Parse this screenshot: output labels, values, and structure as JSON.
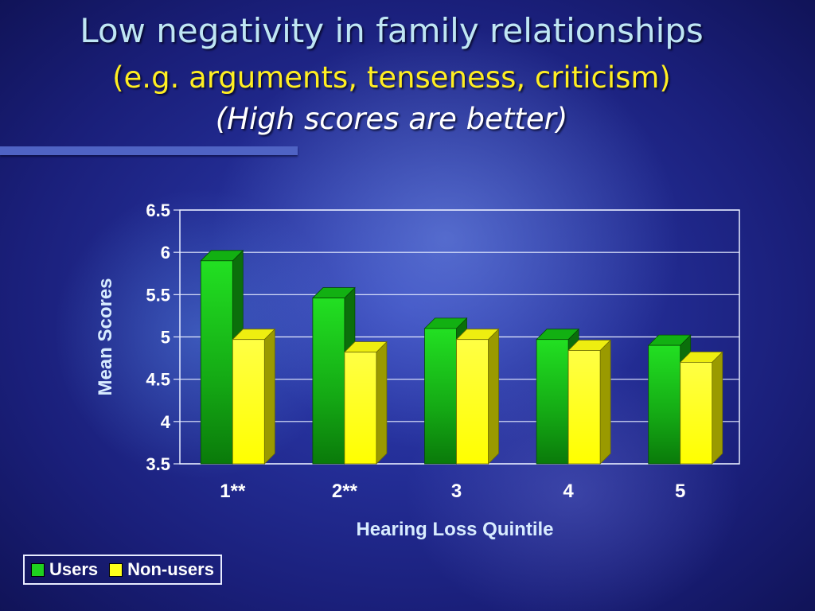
{
  "slide": {
    "title": "Low negativity in family relationships",
    "subtitle": "(e.g. arguments, tenseness, criticism)",
    "note": "(High scores are better)"
  },
  "chart_data": {
    "type": "bar",
    "categories": [
      "1**",
      "2**",
      "3",
      "4",
      "5"
    ],
    "series": [
      {
        "name": "Users",
        "values": [
          5.9,
          5.46,
          5.1,
          4.97,
          4.9
        ],
        "color": "#1fd21f"
      },
      {
        "name": "Non-users",
        "values": [
          4.97,
          4.82,
          4.97,
          4.84,
          4.7
        ],
        "color": "#ffff1a"
      }
    ],
    "xlabel": "Hearing Loss Quintile",
    "ylabel": "Mean Scores",
    "ylim": [
      3.5,
      6.5
    ],
    "yticks": [
      "6.5",
      "6",
      "5.5",
      "5",
      "4.5",
      "4",
      "3.5"
    ],
    "grid": true,
    "legend_position": "bottom-left",
    "style": "3d-bar"
  }
}
